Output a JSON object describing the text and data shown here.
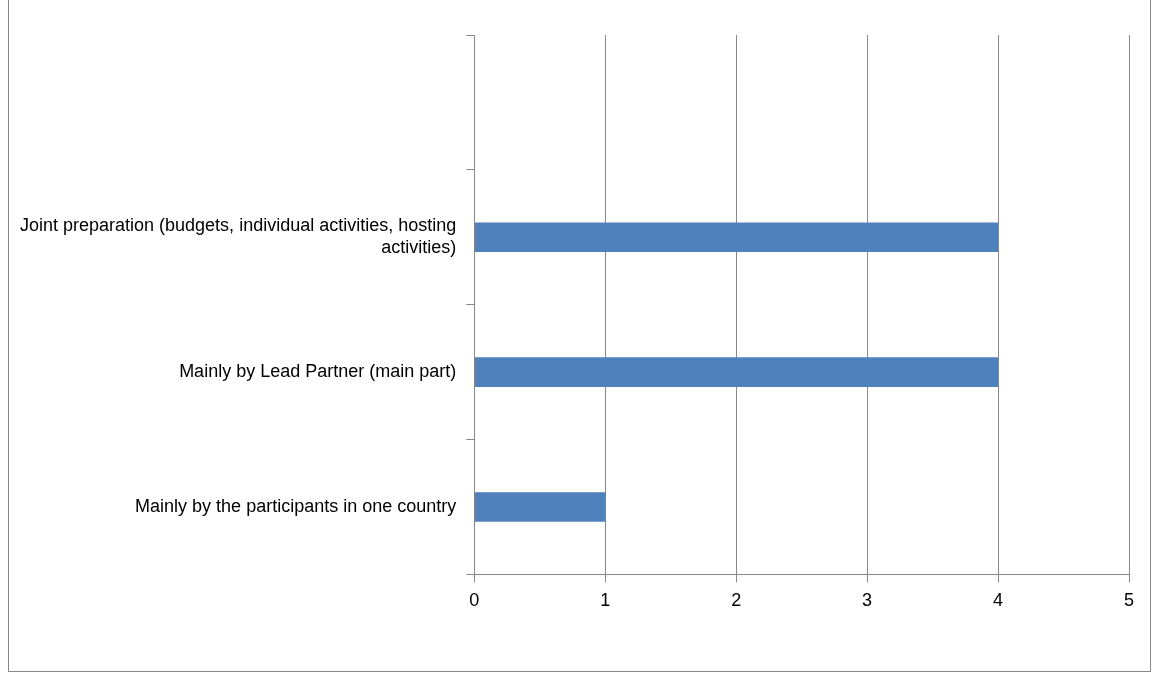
{
  "chart_data": {
    "type": "bar",
    "orientation": "horizontal",
    "categories": [
      null,
      "Joint preparation (budgets, individual activities, hosting activities)",
      "Mainly by Lead Partner (main part)",
      "Mainly by the participants in one country"
    ],
    "values": [
      null,
      4,
      4,
      1
    ],
    "color": "#4f81bd",
    "xlim": [
      0,
      5
    ],
    "xticks": [
      0,
      1,
      2,
      3,
      4,
      5
    ],
    "grid": "x",
    "legend": false
  }
}
